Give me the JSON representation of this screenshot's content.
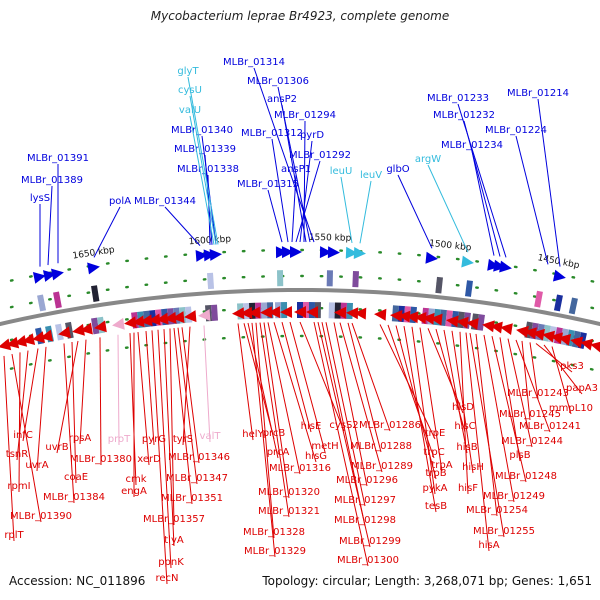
{
  "title": "Mycobacterium leprae Br4923, complete genome",
  "footer": {
    "accession": "Accession: NC_011896",
    "stats": "Topology: circular; Length: 3,268,071 bp; Genes: 1,651"
  },
  "colors": {
    "forward_gene": "#0000dd",
    "trna": "#33bbdd",
    "reverse_gene": "#dd0000",
    "pseudo_gene": "#eeaacc",
    "backbone": "#888888"
  },
  "ticks": [
    "1650 kbp",
    "1600 kbp",
    "1550 kbp",
    "1500 kbp",
    "1450 kbp"
  ],
  "top_labels": {
    "forward": [
      "lysS",
      "MLBr_01389",
      "MLBr_01391",
      "polA",
      "MLBr_01344",
      "MLBr_01338",
      "MLBr_01339",
      "MLBr_01340",
      "MLBr_01315",
      "MLBr_01312",
      "ansP1",
      "MLBr_01292",
      "pyrD",
      "MLBr_01294",
      "ansP2",
      "MLBr_01306",
      "MLBr_01314",
      "glbO",
      "MLBr_01234",
      "MLBr_01232",
      "MLBr_01233",
      "MLBr_01224",
      "MLBr_01214"
    ],
    "trna": [
      "valU",
      "cysU",
      "glyT",
      "leuU",
      "leuV",
      "argW"
    ]
  },
  "bottom_labels": {
    "reverse": [
      "rplT",
      "MLBr_01390",
      "rpmI",
      "tsnR",
      "infC",
      "uvrA",
      "MLBr_01384",
      "coaE",
      "uvrB",
      "rpsA",
      "MLBr_01380",
      "cmk",
      "engA",
      "xerD",
      "pyrG",
      "recN",
      "ppnK",
      "tlyA",
      "MLBr_01357",
      "MLBr_01351",
      "MLBr_01347",
      "MLBr_01346",
      "tyrS",
      "helY",
      "prcB",
      "prcA",
      "MLBr_01329",
      "MLBr_01328",
      "MLBr_01321",
      "MLBr_01320",
      "MLBr_01316",
      "hisG",
      "hisE",
      "metH",
      "cysS2",
      "MLBr_01300",
      "MLBr_01299",
      "MLBr_01298",
      "MLBr_01297",
      "MLBr_01296",
      "MLBr_01289",
      "MLBr_01288",
      "MLBr_01286",
      "trpE",
      "trpC",
      "trpB",
      "tesB",
      "pykA",
      "trpA",
      "hisD",
      "hisC",
      "hisB",
      "hisH",
      "hisF",
      "hisA",
      "MLBr_01255",
      "MLBr_01254",
      "MLBr_01249",
      "MLBr_01248",
      "plsB",
      "MLBr_01244",
      "MLBr_01241",
      "MLBr_01245",
      "MLBr_01243",
      "pks3",
      "papA3",
      "mmpL10"
    ],
    "pseudo": [
      "proT",
      "valT"
    ]
  }
}
